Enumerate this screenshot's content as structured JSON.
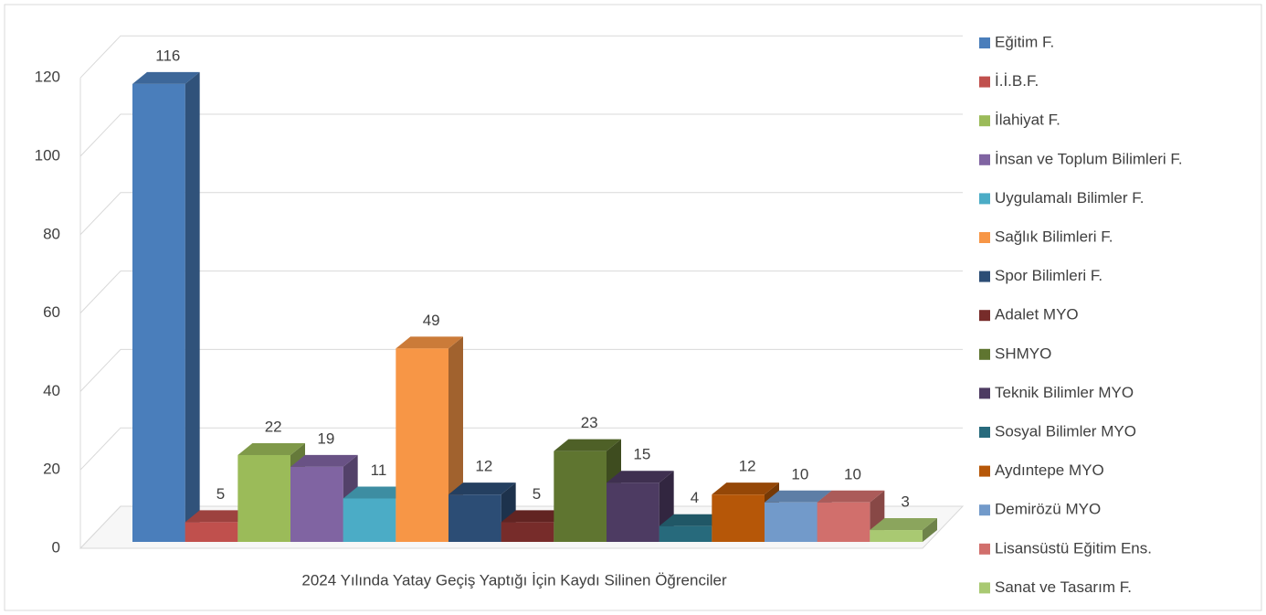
{
  "chart_data": {
    "type": "bar",
    "categories": [
      "2024 Yılında Yatay Geçiş Yaptığı İçin Kaydı Silinen Öğrenciler"
    ],
    "ylim": [
      0,
      120
    ],
    "yticks": [
      0,
      20,
      40,
      60,
      80,
      100,
      120
    ],
    "grid": true,
    "legend": "right",
    "series": [
      {
        "name": "Eğitim F.",
        "color": "#4a7ebb",
        "values": [
          116
        ]
      },
      {
        "name": "İ.İ.B.F.",
        "color": "#c0504d",
        "values": [
          5
        ]
      },
      {
        "name": "İlahiyat F.",
        "color": "#9bbb59",
        "values": [
          22
        ]
      },
      {
        "name": "İnsan ve Toplum Bilimleri F.",
        "color": "#8064a2",
        "values": [
          19
        ]
      },
      {
        "name": "Uygulamalı Bilimler F.",
        "color": "#4bacc6",
        "values": [
          11
        ]
      },
      {
        "name": "Sağlık Bilimleri F.",
        "color": "#f79646",
        "values": [
          49
        ]
      },
      {
        "name": "Spor Bilimleri F.",
        "color": "#2c4d75",
        "values": [
          12
        ]
      },
      {
        "name": "Adalet MYO",
        "color": "#772c2a",
        "values": [
          5
        ]
      },
      {
        "name": "SHMYO",
        "color": "#5f7530",
        "values": [
          23
        ]
      },
      {
        "name": "Teknik Bilimler MYO",
        "color": "#4d3b62",
        "values": [
          15
        ]
      },
      {
        "name": "Sosyal Bilimler MYO",
        "color": "#276a7c",
        "values": [
          4
        ]
      },
      {
        "name": "Aydıntepe MYO",
        "color": "#b65708",
        "values": [
          12
        ]
      },
      {
        "name": "Demirözü MYO",
        "color": "#729aca",
        "values": [
          10
        ]
      },
      {
        "name": "Lisansüstü Eğitim Ens.",
        "color": "#d16f6c",
        "values": [
          10
        ]
      },
      {
        "name": "Sanat ve Tasarım F.",
        "color": "#a9c972",
        "values": [
          3
        ]
      }
    ]
  }
}
